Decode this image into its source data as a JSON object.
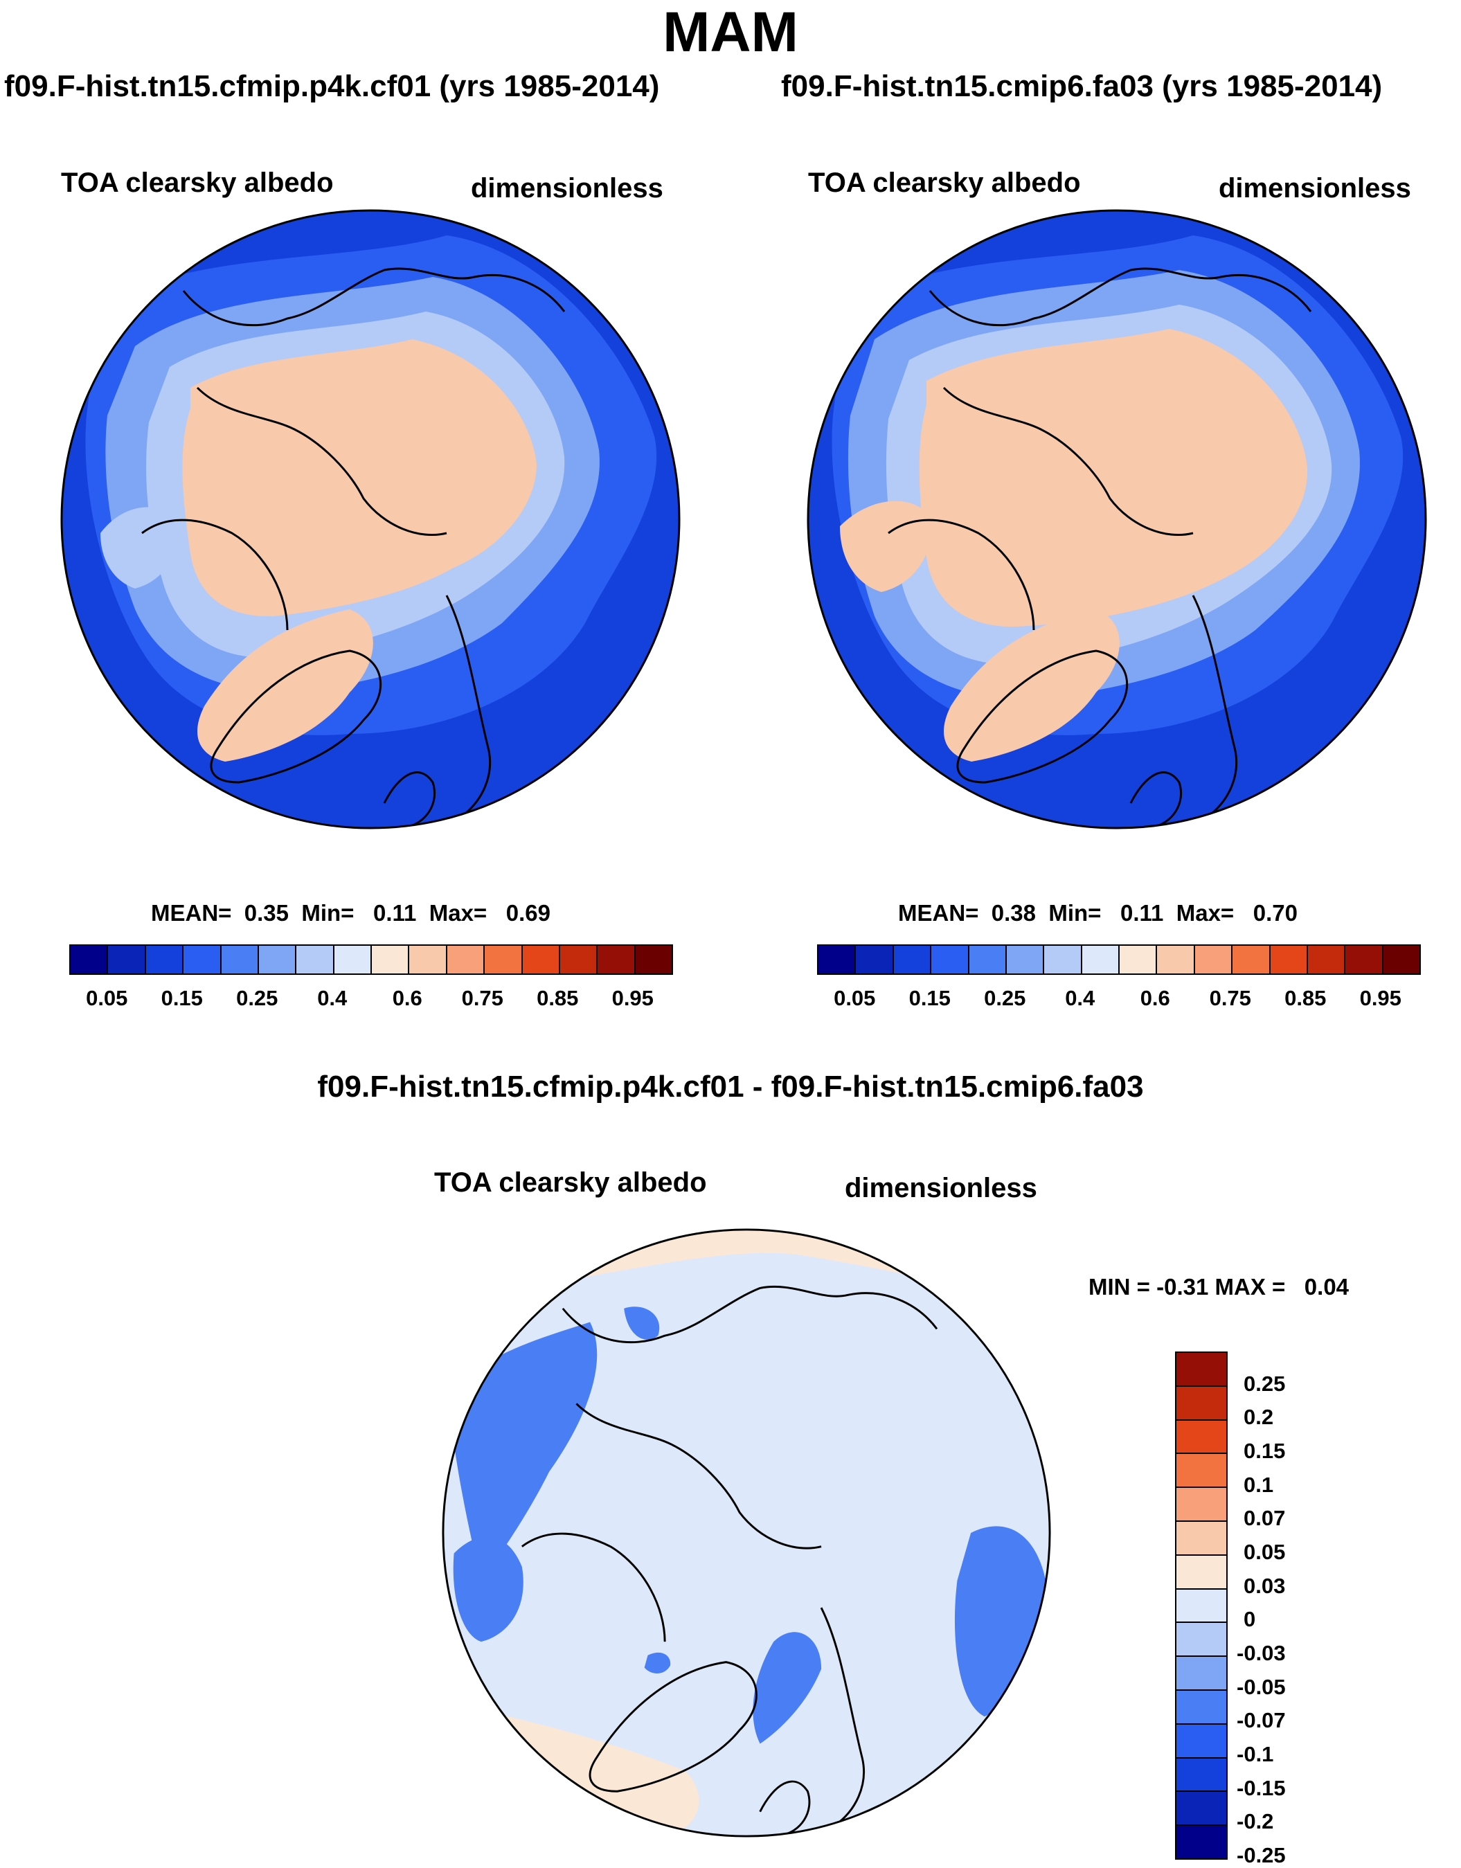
{
  "title": "MAM",
  "panels": [
    {
      "run_title": "f09.F-hist.tn15.cfmip.p4k.cf01 (yrs 1985-2014)",
      "variable": "TOA clearsky albedo",
      "units": "dimensionless",
      "stats": {
        "mean_label": "MEAN=",
        "mean": "0.35",
        "min_label": "Min=",
        "min": "0.11",
        "max_label": "Max=",
        "max": "0.69"
      }
    },
    {
      "run_title": "f09.F-hist.tn15.cmip6.fa03 (yrs 1985-2014)",
      "variable": "TOA clearsky albedo",
      "units": "dimensionless",
      "stats": {
        "mean_label": "MEAN=",
        "mean": "0.38",
        "min_label": "Min=",
        "min": "0.11",
        "max_label": "Max=",
        "max": "0.70"
      }
    }
  ],
  "colorbar": {
    "colors": [
      "#00008b",
      "#0a24b8",
      "#1440dc",
      "#2a5ef2",
      "#4a7ef5",
      "#7fa6f5",
      "#b4cbf7",
      "#dde9fb",
      "#fbe7d6",
      "#f9c9ab",
      "#f7a07a",
      "#f2733f",
      "#e4461a",
      "#c42a0c",
      "#960f06",
      "#6b0000"
    ],
    "ticks": [
      "0.05",
      "0.15",
      "0.25",
      "0.4",
      "0.6",
      "0.75",
      "0.85",
      "0.95"
    ]
  },
  "difference": {
    "title": "f09.F-hist.tn15.cfmip.p4k.cf01 - f09.F-hist.tn15.cmip6.fa03",
    "variable": "TOA clearsky albedo",
    "units": "dimensionless",
    "stats": {
      "min_label": "MIN =",
      "min": "-0.31",
      "max_label": "MAX =",
      "max": "0.04"
    },
    "colorbar": {
      "colors_top_to_bottom": [
        "#960f06",
        "#c42a0c",
        "#e4461a",
        "#f2733f",
        "#f7a07a",
        "#f9c9ab",
        "#fbe7d6",
        "#dde9fb",
        "#b4cbf7",
        "#7fa6f5",
        "#4a7ef5",
        "#2a5ef2",
        "#1440dc",
        "#0a24b8",
        "#00008b"
      ],
      "ticks": [
        "0.25",
        "0.2",
        "0.15",
        "0.1",
        "0.07",
        "0.05",
        "0.03",
        "0",
        "-0.03",
        "-0.05",
        "-0.07",
        "-0.1",
        "-0.15",
        "-0.2",
        "-0.25"
      ]
    }
  },
  "map_colors": {
    "ocean_deep": "#1440dc",
    "ocean_mid": "#2a5ef2",
    "ocean_light": "#4a7ef5",
    "sea_ice_edge": "#7fa6f5",
    "ice_pale": "#b4cbf7",
    "arctic_high": "#f9c9ab",
    "arctic_pale": "#fbe7d6",
    "diff_background": "#dde9fb",
    "diff_positive": "#fbe7d6",
    "diff_negative": "#4a7ef5"
  }
}
